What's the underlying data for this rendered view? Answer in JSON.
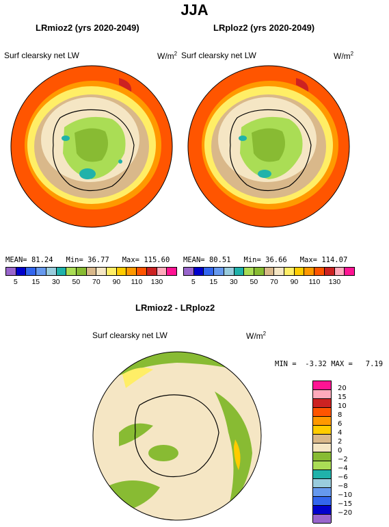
{
  "title": "JJA",
  "panels": [
    {
      "title": "LRmioz2 (yrs 2020-2049)",
      "field": "Surf clearsky net LW",
      "units": "W/m",
      "units_sup": "2",
      "mean_label": "MEAN=",
      "mean": "81.24",
      "min_label": "Min=",
      "min": "36.77",
      "max_label": "Max=",
      "max": "115.60"
    },
    {
      "title": "LRploz2 (yrs 2020-2049)",
      "field": "Surf clearsky net LW",
      "units": "W/m",
      "units_sup": "2",
      "mean_label": "MEAN=",
      "mean": "80.51",
      "min_label": "Min=",
      "min": "36.66",
      "max_label": "Max=",
      "max": "114.07"
    }
  ],
  "top_colorbar": {
    "colors": [
      "#9966cc",
      "#0000cc",
      "#3366ee",
      "#6699ee",
      "#99ccdd",
      "#20b2aa",
      "#aadd55",
      "#88bb33",
      "#d9b88a",
      "#f5e6c4",
      "#ffee66",
      "#ffcc00",
      "#ff9900",
      "#ff5500",
      "#cc2222",
      "#ffaabb",
      "#ff1493"
    ],
    "labels": [
      "5",
      "15",
      "30",
      "50",
      "70",
      "90",
      "110",
      "130"
    ]
  },
  "diff_panel": {
    "title": "LRmioz2 - LRploz2",
    "field": "Surf clearsky net LW",
    "units": "W/m",
    "units_sup": "2",
    "min_label": "MIN =",
    "min": "-3.32",
    "max_label": "MAX =",
    "max": "7.19"
  },
  "diff_colorbar": {
    "colors": [
      "#ff1493",
      "#ffaabb",
      "#cc2222",
      "#ff5500",
      "#ff9900",
      "#ffcc00",
      "#d9b88a",
      "#f5e6c4",
      "#88bb33",
      "#aadd55",
      "#20b2aa",
      "#99ccdd",
      "#6699ee",
      "#3366ee",
      "#0000cc",
      "#9966cc"
    ],
    "labels": [
      "20",
      "15",
      "10",
      "8",
      "6",
      "4",
      "2",
      "0",
      "−2",
      "−4",
      "−6",
      "−8",
      "−10",
      "−15",
      "−20"
    ]
  }
}
